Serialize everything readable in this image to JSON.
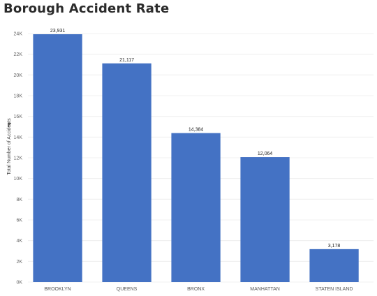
{
  "chart_data": {
    "type": "bar",
    "title": "Borough Accident Rate",
    "ylabel": "Total Number of Accidents",
    "xlabel": "",
    "categories": [
      "BROOKLYN",
      "QUEENS",
      "BRONX",
      "MANHATTAN",
      "STATEN ISLAND"
    ],
    "values": [
      23931,
      21117,
      14384,
      12064,
      3178
    ],
    "value_labels": [
      "23,931",
      "21,117",
      "14,384",
      "12,064",
      "3,178"
    ],
    "ylim": [
      0,
      24000
    ],
    "yticks": [
      0,
      2000,
      4000,
      6000,
      8000,
      10000,
      12000,
      14000,
      16000,
      18000,
      20000,
      22000,
      24000
    ],
    "ytick_labels": [
      "0K",
      "2K",
      "4K",
      "6K",
      "8K",
      "10K",
      "12K",
      "14K",
      "16K",
      "18K",
      "20K",
      "22K",
      "24K"
    ],
    "grid": true,
    "bar_color": "#4472c4",
    "grid_color": "#ebebeb"
  }
}
